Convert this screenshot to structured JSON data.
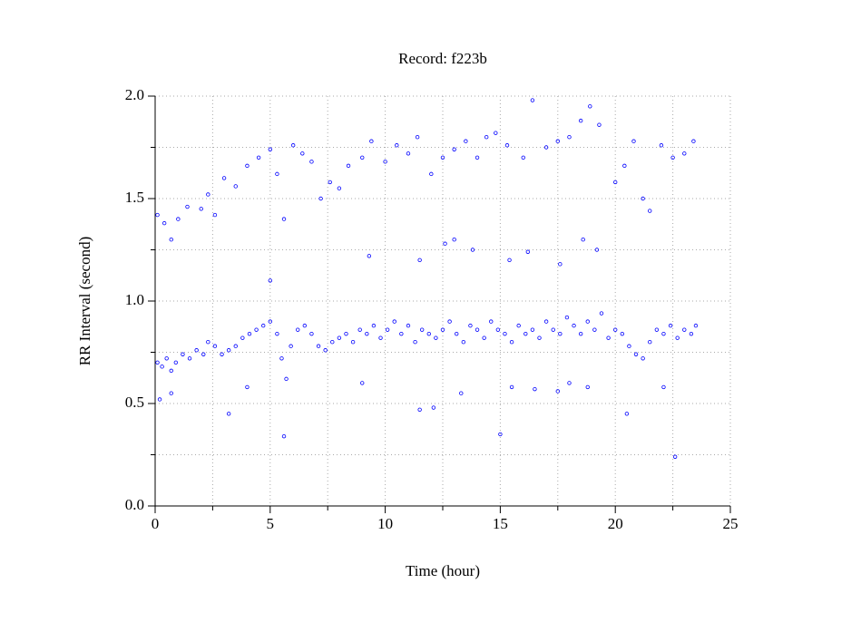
{
  "chart_data": {
    "type": "scatter",
    "title": "Record:  f223b",
    "x_label": "Time (hour)",
    "y_label": "RR Interval (second)",
    "color": "#0000ff",
    "grid": true,
    "xlim": [
      0,
      25
    ],
    "ylim": [
      0,
      2
    ],
    "xticks": [
      0,
      5,
      10,
      15,
      20,
      25
    ],
    "yticks": [
      {
        "value": 0,
        "label": "0.0"
      },
      {
        "value": 0.5,
        "label": "0.5"
      },
      {
        "value": 1,
        "label": "1.0"
      },
      {
        "value": 1.5,
        "label": "1.5"
      },
      {
        "value": 2,
        "label": "2.0"
      }
    ],
    "xminor": [
      2.5,
      7.5,
      12.5,
      17.5,
      22.5
    ],
    "yminor": [
      0.25,
      0.75,
      1.25,
      1.75
    ],
    "x": [
      0.1,
      0.3,
      0.5,
      0.7,
      0.9,
      1.2,
      1.5,
      1.8,
      2.1,
      2.3,
      2.6,
      2.9,
      3.2,
      3.5,
      3.8,
      4.1,
      4.4,
      4.7,
      5.0,
      5.3,
      5.5,
      5.7,
      5.9,
      6.2,
      6.5,
      6.8,
      7.1,
      7.4,
      7.7,
      8.0,
      8.3,
      8.6,
      8.9,
      9.2,
      9.5,
      9.8,
      10.1,
      10.4,
      10.7,
      11.0,
      11.3,
      11.6,
      11.9,
      12.2,
      12.5,
      12.8,
      13.1,
      13.4,
      13.7,
      14.0,
      14.3,
      14.6,
      14.9,
      15.2,
      15.5,
      15.8,
      16.1,
      16.4,
      16.7,
      17.0,
      17.3,
      17.6,
      17.9,
      18.2,
      18.5,
      18.8,
      19.1,
      19.4,
      19.7,
      20.0,
      20.3,
      20.6,
      20.9,
      21.2,
      21.5,
      21.8,
      22.1,
      22.4,
      22.7,
      23.0,
      23.3,
      23.5,
      0.1,
      0.4,
      0.7,
      1.0,
      1.4,
      2.0,
      2.3,
      2.6,
      3.0,
      3.5,
      4.0,
      4.5,
      5.0,
      5.3,
      5.6,
      6.0,
      6.4,
      6.8,
      7.2,
      7.6,
      8.0,
      8.4,
      9.0,
      9.4,
      10.0,
      10.5,
      11.0,
      11.4,
      12.0,
      12.5,
      13.0,
      13.5,
      14.0,
      14.4,
      14.8,
      15.3,
      16.0,
      16.4,
      17.0,
      17.5,
      18.0,
      18.5,
      18.9,
      19.3,
      20.0,
      20.4,
      20.8,
      21.2,
      21.5,
      22.0,
      22.5,
      23.0,
      23.4,
      5.0,
      9.3,
      11.5,
      13.0,
      13.8,
      15.4,
      16.2,
      17.6,
      18.6,
      19.2,
      12.6,
      0.2,
      0.7,
      3.2,
      4.0,
      5.6,
      9.0,
      11.5,
      12.1,
      13.3,
      15.0,
      15.5,
      16.5,
      17.5,
      18.0,
      18.8,
      20.5,
      22.6,
      22.1
    ],
    "values": [
      0.7,
      0.68,
      0.72,
      0.66,
      0.7,
      0.74,
      0.72,
      0.76,
      0.74,
      0.8,
      0.78,
      0.74,
      0.76,
      0.78,
      0.82,
      0.84,
      0.86,
      0.88,
      0.9,
      0.84,
      0.72,
      0.62,
      0.78,
      0.86,
      0.88,
      0.84,
      0.78,
      0.76,
      0.8,
      0.82,
      0.84,
      0.8,
      0.86,
      0.84,
      0.88,
      0.82,
      0.86,
      0.9,
      0.84,
      0.88,
      0.8,
      0.86,
      0.84,
      0.82,
      0.86,
      0.9,
      0.84,
      0.8,
      0.88,
      0.86,
      0.82,
      0.9,
      0.86,
      0.84,
      0.8,
      0.88,
      0.84,
      0.86,
      0.82,
      0.9,
      0.86,
      0.84,
      0.92,
      0.88,
      0.84,
      0.9,
      0.86,
      0.94,
      0.82,
      0.86,
      0.84,
      0.78,
      0.74,
      0.72,
      0.8,
      0.86,
      0.84,
      0.88,
      0.82,
      0.86,
      0.84,
      0.88,
      1.42,
      1.38,
      1.3,
      1.4,
      1.46,
      1.45,
      1.52,
      1.42,
      1.6,
      1.56,
      1.66,
      1.7,
      1.74,
      1.62,
      1.4,
      1.76,
      1.72,
      1.68,
      1.5,
      1.58,
      1.55,
      1.66,
      1.7,
      1.78,
      1.68,
      1.76,
      1.72,
      1.8,
      1.62,
      1.7,
      1.74,
      1.78,
      1.7,
      1.8,
      1.82,
      1.76,
      1.7,
      1.98,
      1.75,
      1.78,
      1.8,
      1.88,
      1.95,
      1.86,
      1.58,
      1.66,
      1.78,
      1.5,
      1.44,
      1.76,
      1.7,
      1.72,
      1.78,
      1.1,
      1.22,
      1.2,
      1.3,
      1.25,
      1.2,
      1.24,
      1.18,
      1.3,
      1.25,
      1.28,
      0.52,
      0.55,
      0.45,
      0.58,
      0.34,
      0.6,
      0.47,
      0.48,
      0.55,
      0.35,
      0.58,
      0.57,
      0.56,
      0.6,
      0.58,
      0.45,
      0.24,
      0.58
    ]
  }
}
